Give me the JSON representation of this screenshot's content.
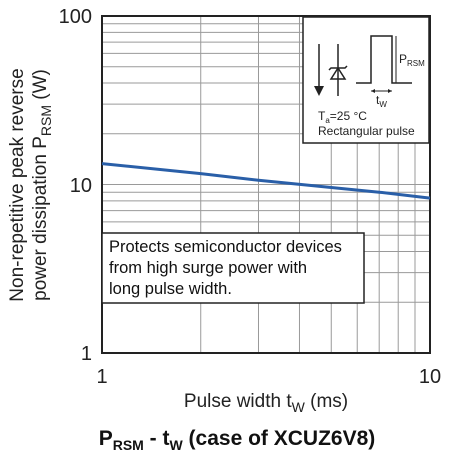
{
  "chart_data": {
    "type": "line",
    "xscale": "log",
    "yscale": "log",
    "xlim": [
      1,
      10
    ],
    "ylim": [
      1,
      100
    ],
    "grid": true,
    "x_ticks": [
      "1",
      "10"
    ],
    "y_ticks": [
      "1",
      "10",
      "100"
    ],
    "xlabel": {
      "main": "Pulse width t",
      "sub": "W",
      "unit": " (ms)"
    },
    "ylabel": {
      "line1": "Non-repetitive peak reverse",
      "line2_main": "power dissipation P",
      "line2_sub": "RSM",
      "line2_unit": " (W)"
    },
    "series": [
      {
        "x": [
          1,
          2,
          3,
          5,
          7,
          10
        ],
        "y": [
          13.3,
          11.6,
          10.6,
          9.6,
          9.0,
          8.3
        ],
        "color": "#2a5fa8"
      }
    ],
    "inset": {
      "prsm_main": "P",
      "prsm_sub": "RSM",
      "tw_main": "t",
      "tw_sub": "W",
      "ta_main": "T",
      "ta_sub": "a",
      "ta_value": "=25 °C",
      "pulse": "Rectangular pulse"
    },
    "annotation": [
      "Protects semiconductor devices",
      "from high surge power with",
      "long pulse width."
    ]
  },
  "caption": {
    "p": "P",
    "p_sub": "RSM",
    "dash": " - t",
    "t_sub": "W",
    "rest": " (case of XCUZ6V8)"
  }
}
